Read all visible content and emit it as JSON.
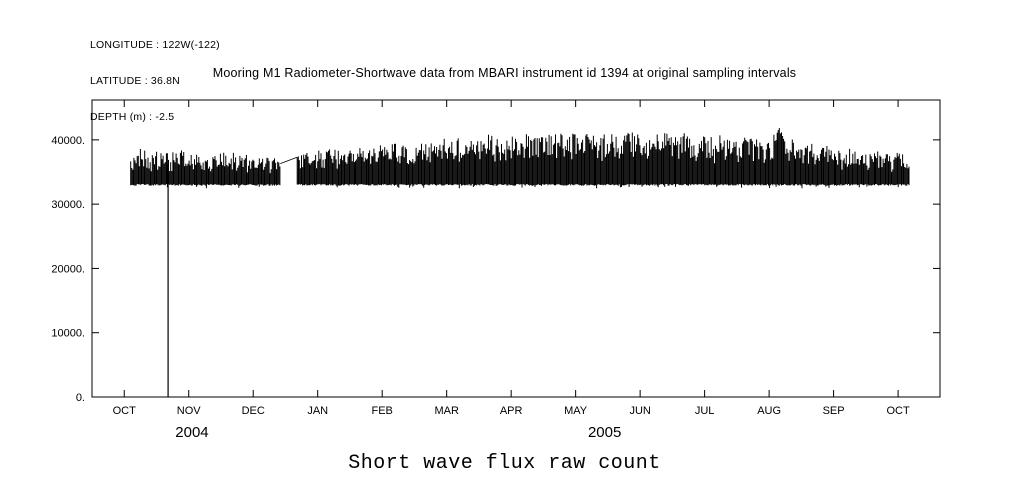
{
  "header": {
    "longitude": "LONGITUDE : 122W(-122)",
    "latitude": "LATITUDE : 36.8N",
    "depth": "DEPTH (m) : -2.5"
  },
  "chart_data": {
    "type": "line",
    "title": "Mooring M1 Radiometer-Shortwave data from MBARI instrument id 1394 at original sampling intervals",
    "caption": "Short wave flux raw count",
    "background_color": "#ffffff",
    "line_color": "#000000",
    "grid": false,
    "legend": false,
    "xlim_months": [
      -0.5,
      12.65
    ],
    "ylim": [
      0,
      46200
    ],
    "x_tick_months": [
      0,
      1,
      2,
      3,
      4,
      5,
      6,
      7,
      8,
      9,
      10,
      11,
      12
    ],
    "x_tick_labels": [
      "OCT",
      "NOV",
      "DEC",
      "JAN",
      "FEB",
      "MAR",
      "APR",
      "MAY",
      "JUN",
      "JUL",
      "AUG",
      "SEP",
      "OCT"
    ],
    "year_labels": [
      {
        "text": "2004",
        "month": 1.05
      },
      {
        "text": "2005",
        "month": 7.45
      }
    ],
    "yticks": [
      {
        "value": 0,
        "label": "0."
      },
      {
        "value": 10000,
        "label": "10000."
      },
      {
        "value": 20000,
        "label": "20000."
      },
      {
        "value": 30000,
        "label": "30000."
      },
      {
        "value": 40000,
        "label": "40000."
      }
    ],
    "series": [
      {
        "name": "Short wave flux raw count",
        "style": "vertical-strokes",
        "baseline": 33000,
        "start_month": 0.1,
        "end_month": 12.17,
        "peak_envelope_month_value": [
          [
            0.1,
            37900
          ],
          [
            0.25,
            38300
          ],
          [
            0.4,
            37700
          ],
          [
            0.55,
            38100
          ],
          [
            0.7,
            37800
          ],
          [
            0.85,
            38200
          ],
          [
            1.0,
            37700
          ],
          [
            1.15,
            38100
          ],
          [
            1.3,
            37500
          ],
          [
            1.45,
            37900
          ],
          [
            1.6,
            37600
          ],
          [
            1.75,
            38000
          ],
          [
            1.9,
            37400
          ],
          [
            2.05,
            37600
          ],
          [
            2.2,
            37200
          ],
          [
            2.35,
            36900
          ],
          [
            2.42,
            36700
          ],
          [
            2.68,
            37400
          ],
          [
            2.85,
            38000
          ],
          [
            3.0,
            38200
          ],
          [
            3.2,
            38600
          ],
          [
            3.4,
            38300
          ],
          [
            3.6,
            38700
          ],
          [
            3.8,
            38900
          ],
          [
            4.0,
            39100
          ],
          [
            4.2,
            39400
          ],
          [
            4.4,
            39200
          ],
          [
            4.6,
            39600
          ],
          [
            4.8,
            39800
          ],
          [
            5.0,
            40100
          ],
          [
            5.2,
            40300
          ],
          [
            5.4,
            40200
          ],
          [
            5.6,
            40500
          ],
          [
            5.8,
            40600
          ],
          [
            6.0,
            40500
          ],
          [
            6.2,
            40700
          ],
          [
            6.4,
            40800
          ],
          [
            6.6,
            40700
          ],
          [
            6.8,
            40900
          ],
          [
            7.0,
            40800
          ],
          [
            7.2,
            41000
          ],
          [
            7.4,
            40900
          ],
          [
            7.6,
            41100
          ],
          [
            7.8,
            41000
          ],
          [
            8.0,
            41000
          ],
          [
            8.2,
            40900
          ],
          [
            8.4,
            41000
          ],
          [
            8.6,
            40800
          ],
          [
            8.8,
            40700
          ],
          [
            9.0,
            40500
          ],
          [
            9.2,
            40400
          ],
          [
            9.4,
            40300
          ],
          [
            9.6,
            40200
          ],
          [
            9.8,
            40100
          ],
          [
            10.0,
            40000
          ],
          [
            10.12,
            42400
          ],
          [
            10.25,
            40000
          ],
          [
            10.45,
            39700
          ],
          [
            10.65,
            39400
          ],
          [
            10.85,
            39000
          ],
          [
            11.0,
            38700
          ],
          [
            11.2,
            38400
          ],
          [
            11.4,
            38200
          ],
          [
            11.6,
            38000
          ],
          [
            11.8,
            37800
          ],
          [
            12.0,
            37700
          ],
          [
            12.17,
            37500
          ]
        ],
        "gaps": [
          {
            "start_month": 2.42,
            "end_month": 2.68,
            "bridge_from": 36300,
            "bridge_to": 37300
          }
        ],
        "dropout_spikes": [
          {
            "month": 0.68,
            "from_value": 0,
            "to_value": 36200
          }
        ]
      }
    ]
  }
}
